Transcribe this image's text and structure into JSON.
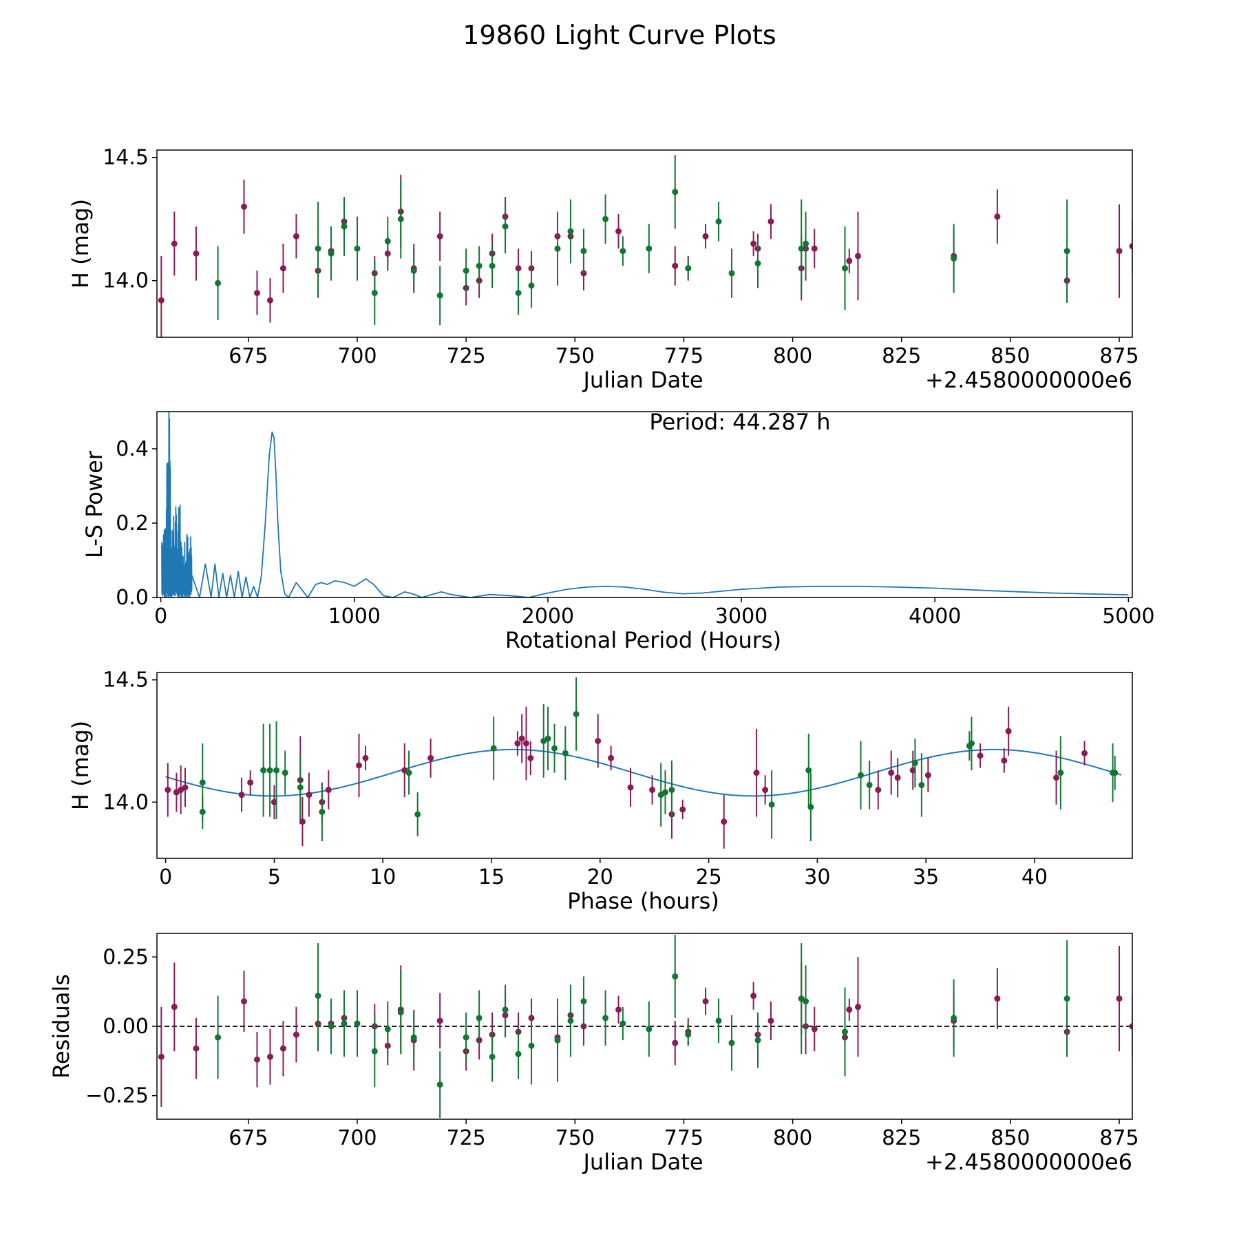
{
  "figure_title": "19860 Light Curve Plots",
  "colors": {
    "purple": "#8b1a55",
    "green": "#117733",
    "curve": "#1f77b4",
    "zero_line": "#000000"
  },
  "chart_data": [
    {
      "id": "lightcurve",
      "type": "scatter",
      "xlabel": "Julian Date",
      "ylabel": "H (mag)",
      "offset_text": "+2.4580000000e6",
      "xlim": [
        654,
        878
      ],
      "ylim": [
        13.77,
        14.53
      ],
      "xticks": [
        675,
        700,
        725,
        750,
        775,
        800,
        825,
        850,
        875
      ],
      "yticks": [
        14.0,
        14.5
      ],
      "ytick_format": 1,
      "series": [
        {
          "name": "purple",
          "color_key": "purple",
          "x": [
            655,
            658,
            663,
            674,
            677,
            680,
            683,
            686,
            691,
            694,
            697,
            704,
            707,
            710,
            713,
            719,
            725,
            728,
            731,
            734,
            737,
            740,
            746,
            749,
            752,
            760,
            773,
            776,
            780,
            791,
            792,
            795,
            802,
            803,
            805,
            812,
            813,
            815,
            837,
            847,
            863,
            875,
            878
          ],
          "y": [
            13.92,
            14.15,
            14.11,
            14.3,
            13.95,
            13.92,
            14.05,
            14.18,
            14.04,
            14.12,
            14.24,
            14.03,
            14.11,
            14.28,
            14.05,
            14.18,
            13.97,
            14.0,
            14.11,
            14.26,
            14.05,
            14.05,
            14.18,
            14.18,
            14.03,
            14.2,
            14.06,
            14.05,
            14.18,
            14.15,
            14.13,
            14.24,
            14.05,
            14.13,
            14.13,
            14.05,
            14.08,
            14.1,
            14.1,
            14.26,
            14.0,
            14.12,
            14.14
          ],
          "err": [
            0.18,
            0.13,
            0.11,
            0.11,
            0.09,
            0.09,
            0.1,
            0.09,
            0.11,
            0.08,
            0.08,
            0.07,
            0.07,
            0.15,
            0.1,
            0.1,
            0.07,
            0.07,
            0.08,
            0.08,
            0.08,
            0.07,
            0.09,
            0.08,
            0.07,
            0.07,
            0.08,
            0.05,
            0.05,
            0.05,
            0.06,
            0.07,
            0.13,
            0.13,
            0.08,
            0.05,
            0.05,
            0.18,
            0.1,
            0.11,
            0.09,
            0.19,
            0.11
          ]
        },
        {
          "name": "green",
          "color_key": "green",
          "x": [
            668,
            691,
            694,
            697,
            700,
            704,
            707,
            710,
            713,
            719,
            725,
            728,
            731,
            734,
            737,
            740,
            746,
            749,
            752,
            757,
            761,
            767,
            773,
            776,
            783,
            786,
            792,
            802,
            803,
            812,
            837,
            863
          ],
          "y": [
            13.99,
            14.13,
            14.11,
            14.22,
            14.13,
            13.95,
            14.16,
            14.25,
            14.04,
            13.94,
            14.04,
            14.06,
            14.06,
            14.22,
            13.95,
            13.98,
            14.13,
            14.2,
            14.12,
            14.25,
            14.12,
            14.13,
            14.36,
            14.05,
            14.24,
            14.03,
            14.07,
            14.13,
            14.15,
            14.05,
            14.09,
            14.12
          ],
          "err": [
            0.15,
            0.19,
            0.11,
            0.12,
            0.13,
            0.13,
            0.1,
            0.16,
            0.09,
            0.12,
            0.09,
            0.08,
            0.09,
            0.11,
            0.09,
            0.09,
            0.15,
            0.13,
            0.09,
            0.1,
            0.06,
            0.1,
            0.15,
            0.04,
            0.08,
            0.1,
            0.1,
            0.2,
            0.13,
            0.17,
            0.14,
            0.21
          ]
        }
      ]
    },
    {
      "id": "periodogram",
      "type": "line",
      "xlabel": "Rotational Period (Hours)",
      "ylabel": "L-S Power",
      "annotation": "Period: 44.287 h",
      "xlim": [
        -20,
        5020
      ],
      "ylim": [
        0.0,
        0.5
      ],
      "xticks": [
        0,
        1000,
        2000,
        3000,
        4000,
        5000
      ],
      "yticks": [
        0.0,
        0.2,
        0.4
      ],
      "ytick_format": 1,
      "smooth_x": [
        160,
        200,
        230,
        260,
        280,
        300,
        320,
        340,
        360,
        380,
        400,
        420,
        440,
        460,
        480,
        500,
        520,
        540,
        560,
        575,
        585,
        595,
        605,
        620,
        640,
        660,
        680,
        700,
        730,
        760,
        800,
        830,
        860,
        900,
        950,
        1000,
        1060,
        1100,
        1150,
        1200,
        1260,
        1300,
        1350,
        1400,
        1450,
        1500,
        1600,
        1700,
        1800,
        1900,
        2000,
        2100,
        2200,
        2300,
        2400,
        2500,
        2600,
        2700,
        2800,
        3000,
        3200,
        3400,
        3600,
        3800,
        4000,
        4300,
        4600,
        5000
      ],
      "smooth_y": [
        0.06,
        0.0,
        0.09,
        0.0,
        0.09,
        0.0,
        0.065,
        0.0,
        0.06,
        0.0,
        0.07,
        0.0,
        0.055,
        0.0,
        0.03,
        0.0,
        0.06,
        0.2,
        0.38,
        0.445,
        0.43,
        0.33,
        0.2,
        0.07,
        0.01,
        0.0,
        0.02,
        0.04,
        0.02,
        0.0,
        0.035,
        0.04,
        0.035,
        0.045,
        0.04,
        0.03,
        0.05,
        0.035,
        0.005,
        0.0,
        0.015,
        0.01,
        0.0,
        0.008,
        0.015,
        0.008,
        0.0,
        0.008,
        0.005,
        0.0,
        0.012,
        0.022,
        0.028,
        0.03,
        0.028,
        0.022,
        0.014,
        0.01,
        0.012,
        0.022,
        0.028,
        0.03,
        0.03,
        0.028,
        0.025,
        0.018,
        0.012,
        0.007
      ]
    },
    {
      "id": "phased",
      "type": "scatter",
      "xlabel": "Phase (hours)",
      "ylabel": "H (mag)",
      "xlim": [
        -0.4,
        44.5
      ],
      "ylim": [
        13.77,
        14.53
      ],
      "xticks": [
        0,
        5,
        10,
        15,
        20,
        25,
        30,
        35,
        40
      ],
      "yticks": [
        14.0,
        14.5
      ],
      "ytick_format": 1,
      "model": {
        "mean": 14.12,
        "amplitude": 0.095,
        "period": 22.14,
        "phase_of_max": 16.0,
        "x_range": [
          0,
          44
        ]
      },
      "series": [
        {
          "name": "purple",
          "color_key": "purple",
          "x": [
            0.1,
            0.5,
            0.7,
            0.9,
            3.5,
            3.9,
            5.0,
            6.2,
            6.3,
            6.6,
            7.2,
            7.5,
            8.9,
            9.2,
            11.0,
            12.2,
            16.2,
            16.4,
            16.6,
            16.8,
            19.9,
            20.5,
            21.4,
            22.4,
            23.3,
            23.8,
            25.7,
            27.2,
            27.6,
            32.8,
            33.4,
            33.7,
            34.4,
            35.1,
            37.5,
            38.6,
            38.8,
            41.0,
            42.3
          ],
          "y": [
            14.05,
            14.04,
            14.05,
            14.06,
            14.03,
            14.08,
            14.0,
            14.09,
            13.92,
            14.03,
            14.0,
            14.05,
            14.15,
            14.18,
            14.13,
            14.18,
            14.24,
            14.26,
            14.24,
            14.18,
            14.25,
            14.18,
            14.06,
            14.05,
            13.95,
            13.97,
            13.92,
            14.12,
            14.05,
            14.05,
            14.12,
            14.1,
            14.13,
            14.11,
            14.19,
            14.17,
            14.29,
            14.1,
            14.2
          ],
          "err": [
            0.11,
            0.08,
            0.1,
            0.08,
            0.07,
            0.05,
            0.07,
            0.18,
            0.1,
            0.09,
            0.08,
            0.08,
            0.13,
            0.05,
            0.11,
            0.08,
            0.05,
            0.1,
            0.15,
            0.07,
            0.11,
            0.05,
            0.08,
            0.06,
            0.1,
            0.04,
            0.11,
            0.18,
            0.06,
            0.08,
            0.09,
            0.08,
            0.08,
            0.07,
            0.05,
            0.05,
            0.1,
            0.11,
            0.05
          ]
        },
        {
          "name": "green",
          "color_key": "green",
          "x": [
            1.7,
            1.7,
            4.5,
            4.8,
            5.1,
            5.5,
            6.2,
            7.2,
            11.2,
            11.6,
            15.1,
            17.4,
            17.6,
            17.9,
            18.9,
            18.4,
            22.8,
            23.0,
            23.3,
            27.9,
            29.6,
            29.7,
            32.0,
            32.4,
            34.5,
            34.8,
            37.0,
            37.1,
            41.2,
            43.6,
            43.7
          ],
          "y": [
            14.08,
            13.96,
            14.13,
            14.13,
            14.13,
            14.12,
            14.06,
            13.96,
            14.12,
            13.95,
            14.22,
            14.25,
            14.26,
            14.22,
            14.36,
            14.2,
            14.03,
            14.04,
            14.05,
            13.99,
            14.13,
            13.98,
            14.11,
            14.07,
            14.16,
            14.07,
            14.23,
            14.24,
            14.12,
            14.12,
            14.12
          ],
          "err": [
            0.16,
            0.07,
            0.19,
            0.19,
            0.2,
            0.09,
            0.13,
            0.12,
            0.09,
            0.09,
            0.13,
            0.15,
            0.13,
            0.1,
            0.15,
            0.11,
            0.13,
            0.09,
            0.12,
            0.14,
            0.15,
            0.14,
            0.14,
            0.1,
            0.1,
            0.13,
            0.06,
            0.11,
            0.15,
            0.12,
            0.07
          ]
        }
      ]
    },
    {
      "id": "residuals",
      "type": "scatter",
      "xlabel": "Julian Date",
      "ylabel": "Residuals",
      "offset_text": "+2.4580000000e6",
      "xlim": [
        654,
        878
      ],
      "ylim": [
        -0.335,
        0.335
      ],
      "xticks": [
        675,
        700,
        725,
        750,
        775,
        800,
        825,
        850,
        875
      ],
      "yticks": [
        -0.25,
        0.0,
        0.25
      ],
      "ytick_format": 2,
      "zero_line": true,
      "series": [
        {
          "name": "purple",
          "color_key": "purple",
          "x": [
            655,
            658,
            663,
            674,
            677,
            680,
            683,
            686,
            691,
            694,
            697,
            704,
            707,
            710,
            713,
            719,
            725,
            728,
            731,
            734,
            737,
            740,
            746,
            749,
            752,
            760,
            773,
            776,
            780,
            791,
            792,
            795,
            802,
            803,
            805,
            812,
            813,
            815,
            837,
            847,
            863,
            875,
            878
          ],
          "y": [
            -0.11,
            0.07,
            -0.08,
            0.09,
            -0.12,
            -0.11,
            -0.08,
            -0.03,
            0.01,
            0.01,
            0.03,
            0.0,
            -0.07,
            0.06,
            -0.05,
            0.02,
            -0.09,
            -0.05,
            -0.03,
            0.04,
            -0.02,
            0.03,
            -0.04,
            0.04,
            0.0,
            0.06,
            -0.06,
            -0.02,
            0.09,
            0.11,
            -0.03,
            0.02,
            0.1,
            0.0,
            -0.01,
            -0.04,
            0.06,
            0.07,
            0.02,
            0.1,
            -0.02,
            0.1,
            0.0
          ],
          "err": [
            0.18,
            0.16,
            0.11,
            0.11,
            0.1,
            0.1,
            0.1,
            0.1,
            0.1,
            0.08,
            0.07,
            0.08,
            0.07,
            0.16,
            0.11,
            0.1,
            0.07,
            0.07,
            0.08,
            0.08,
            0.07,
            0.07,
            0.08,
            0.07,
            0.07,
            0.05,
            0.08,
            0.05,
            0.05,
            0.05,
            0.05,
            0.07,
            0.13,
            0.1,
            0.08,
            0.05,
            0.04,
            0.18,
            0.1,
            0.11,
            0.09,
            0.19,
            0.11
          ]
        },
        {
          "name": "green",
          "color_key": "green",
          "x": [
            668,
            691,
            694,
            697,
            700,
            704,
            707,
            710,
            713,
            719,
            725,
            728,
            731,
            734,
            737,
            740,
            746,
            749,
            752,
            757,
            761,
            767,
            773,
            776,
            783,
            786,
            792,
            802,
            803,
            812,
            837,
            863
          ],
          "y": [
            -0.04,
            0.11,
            0.0,
            0.01,
            0.01,
            -0.09,
            -0.01,
            0.05,
            -0.04,
            -0.21,
            -0.04,
            0.03,
            -0.11,
            0.06,
            -0.1,
            -0.07,
            -0.05,
            0.02,
            0.09,
            0.03,
            0.01,
            -0.01,
            0.18,
            -0.03,
            0.02,
            -0.06,
            -0.05,
            0.1,
            0.09,
            -0.02,
            0.03,
            0.1
          ],
          "err": [
            0.15,
            0.19,
            0.1,
            0.12,
            0.12,
            0.13,
            0.1,
            0.15,
            0.09,
            0.12,
            0.09,
            0.1,
            0.09,
            0.09,
            0.09,
            0.14,
            0.15,
            0.13,
            0.09,
            0.1,
            0.06,
            0.1,
            0.15,
            0.04,
            0.08,
            0.1,
            0.1,
            0.2,
            0.13,
            0.16,
            0.14,
            0.21
          ]
        }
      ]
    }
  ]
}
